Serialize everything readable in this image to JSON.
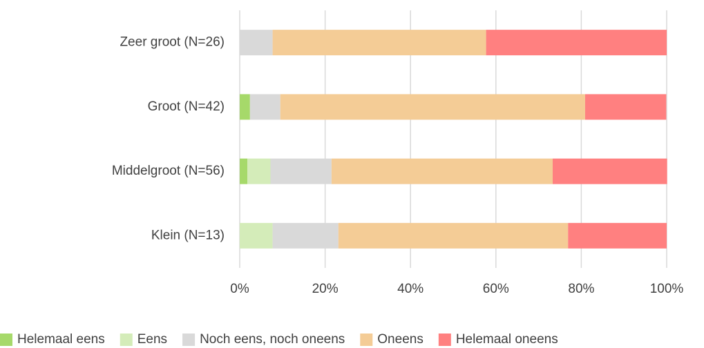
{
  "chart_data": {
    "type": "stacked-barh",
    "categories": [
      "Zeer groot (N=26)",
      "Groot (N=42)",
      "Middelgroot (N=56)",
      "Klein (N=13)"
    ],
    "series": [
      {
        "name": "Helemaal eens",
        "color": "#a6d96a",
        "values": [
          0,
          2.4,
          1.8,
          0
        ]
      },
      {
        "name": "Eens",
        "color": "#d4ecb9",
        "values": [
          0,
          0,
          5.4,
          7.7
        ]
      },
      {
        "name": "Noch eens, noch oneens",
        "color": "#d9d9d9",
        "values": [
          7.7,
          7.1,
          14.3,
          15.4
        ]
      },
      {
        "name": "Oneens",
        "color": "#f4cc96",
        "values": [
          50,
          71.4,
          51.8,
          53.8
        ]
      },
      {
        "name": "Helemaal oneens",
        "color": "#ff8080",
        "values": [
          42.3,
          19.0,
          26.8,
          23.1
        ]
      }
    ],
    "xlim": [
      0,
      100
    ],
    "xticks": [
      {
        "value": 0,
        "label": "0%"
      },
      {
        "value": 20,
        "label": "20%"
      },
      {
        "value": 40,
        "label": "40%"
      },
      {
        "value": 60,
        "label": "60%"
      },
      {
        "value": 80,
        "label": "80%"
      },
      {
        "value": 100,
        "label": "100%"
      }
    ],
    "grid": true,
    "legend": "bottom"
  }
}
